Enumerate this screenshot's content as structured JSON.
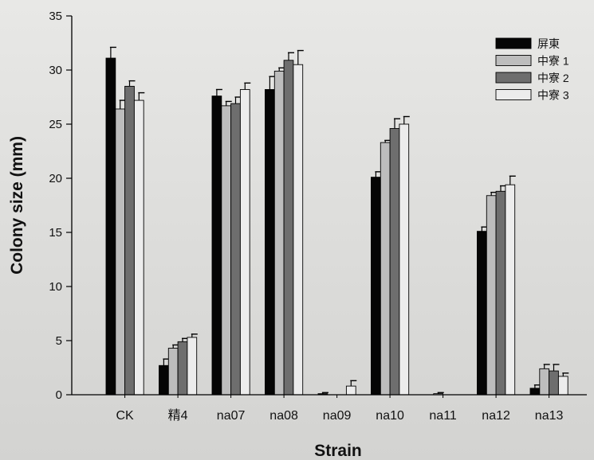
{
  "chart_data": {
    "type": "bar",
    "title": "",
    "xlabel": "Strain",
    "ylabel": "Colony size (mm)",
    "ylim": [
      0,
      35
    ],
    "yticks": [
      0,
      5,
      10,
      15,
      20,
      25,
      30,
      35
    ],
    "grid": false,
    "legend_position": "top-right",
    "categories": [
      "CK",
      "精4",
      "na07",
      "na08",
      "na09",
      "na10",
      "na11",
      "na12",
      "na13"
    ],
    "series": [
      {
        "name": "屏東",
        "color": "#050505",
        "values": [
          31.1,
          2.7,
          27.6,
          28.2,
          0.1,
          20.1,
          0,
          15.1,
          0.6
        ],
        "errors": [
          1.0,
          0.6,
          0.6,
          1.2,
          0.1,
          0.5,
          0,
          0.4,
          0.3
        ]
      },
      {
        "name": "中寮 1",
        "color": "#bdbdbd",
        "values": [
          26.4,
          4.3,
          26.7,
          29.9,
          0,
          23.3,
          0.1,
          18.4,
          2.4
        ],
        "errors": [
          0.8,
          0.3,
          0.4,
          0.3,
          0,
          0.2,
          0.1,
          0.3,
          0.4
        ]
      },
      {
        "name": "中寮 2",
        "color": "#6e6e6e",
        "values": [
          28.5,
          4.9,
          26.9,
          30.9,
          0,
          24.6,
          0,
          18.8,
          2.2
        ],
        "errors": [
          0.5,
          0.3,
          0.6,
          0.7,
          0,
          0.9,
          0,
          0.5,
          0.6
        ]
      },
      {
        "name": "中寮 3",
        "color": "#ececec",
        "values": [
          27.2,
          5.3,
          28.2,
          30.5,
          0.8,
          25.0,
          0,
          19.4,
          1.7
        ],
        "errors": [
          0.7,
          0.3,
          0.6,
          1.3,
          0.5,
          0.7,
          0,
          0.8,
          0.3
        ]
      }
    ]
  }
}
